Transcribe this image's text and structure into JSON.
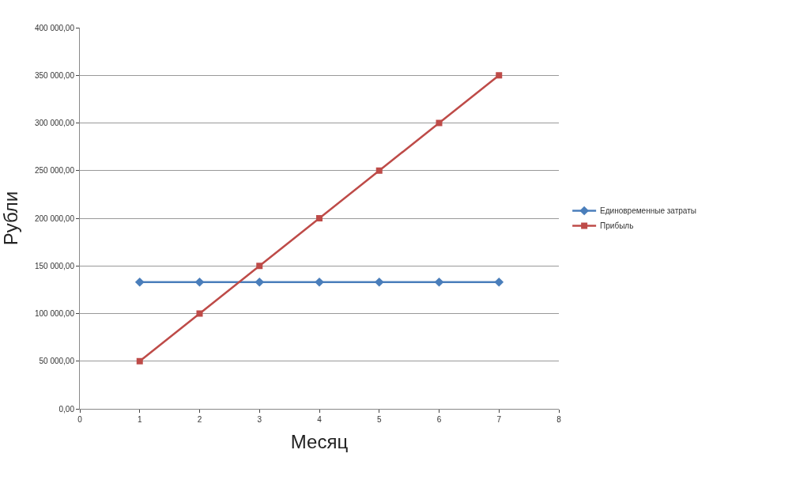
{
  "chart_data": {
    "type": "line",
    "xlabel": "Месяц",
    "ylabel": "Рубли",
    "x": [
      1,
      2,
      3,
      4,
      5,
      6,
      7
    ],
    "series": [
      {
        "name": "Единовременные затраты",
        "color": "#4a7ebb",
        "marker": "diamond",
        "values": [
          133000,
          133000,
          133000,
          133000,
          133000,
          133000,
          133000
        ]
      },
      {
        "name": "Прибыль",
        "color": "#be4b48",
        "marker": "square",
        "values": [
          50000,
          100000,
          150000,
          200000,
          250000,
          300000,
          350000
        ]
      }
    ],
    "xlim": [
      0,
      8
    ],
    "xticks": [
      0,
      1,
      2,
      3,
      4,
      5,
      6,
      7,
      8
    ],
    "ylim": [
      0,
      400000
    ],
    "yticks": [
      {
        "value": 0,
        "label": "0,00"
      },
      {
        "value": 50000,
        "label": "50 000,00"
      },
      {
        "value": 100000,
        "label": "100 000,00"
      },
      {
        "value": 150000,
        "label": "150 000,00"
      },
      {
        "value": 200000,
        "label": "200 000,00"
      },
      {
        "value": 250000,
        "label": "250 000,00"
      },
      {
        "value": 300000,
        "label": "300 000,00"
      },
      {
        "value": 350000,
        "label": "350 000,00"
      },
      {
        "value": 400000,
        "label": "400 000,00"
      }
    ],
    "grid": "y",
    "legend": "right",
    "line_style": "solid"
  }
}
